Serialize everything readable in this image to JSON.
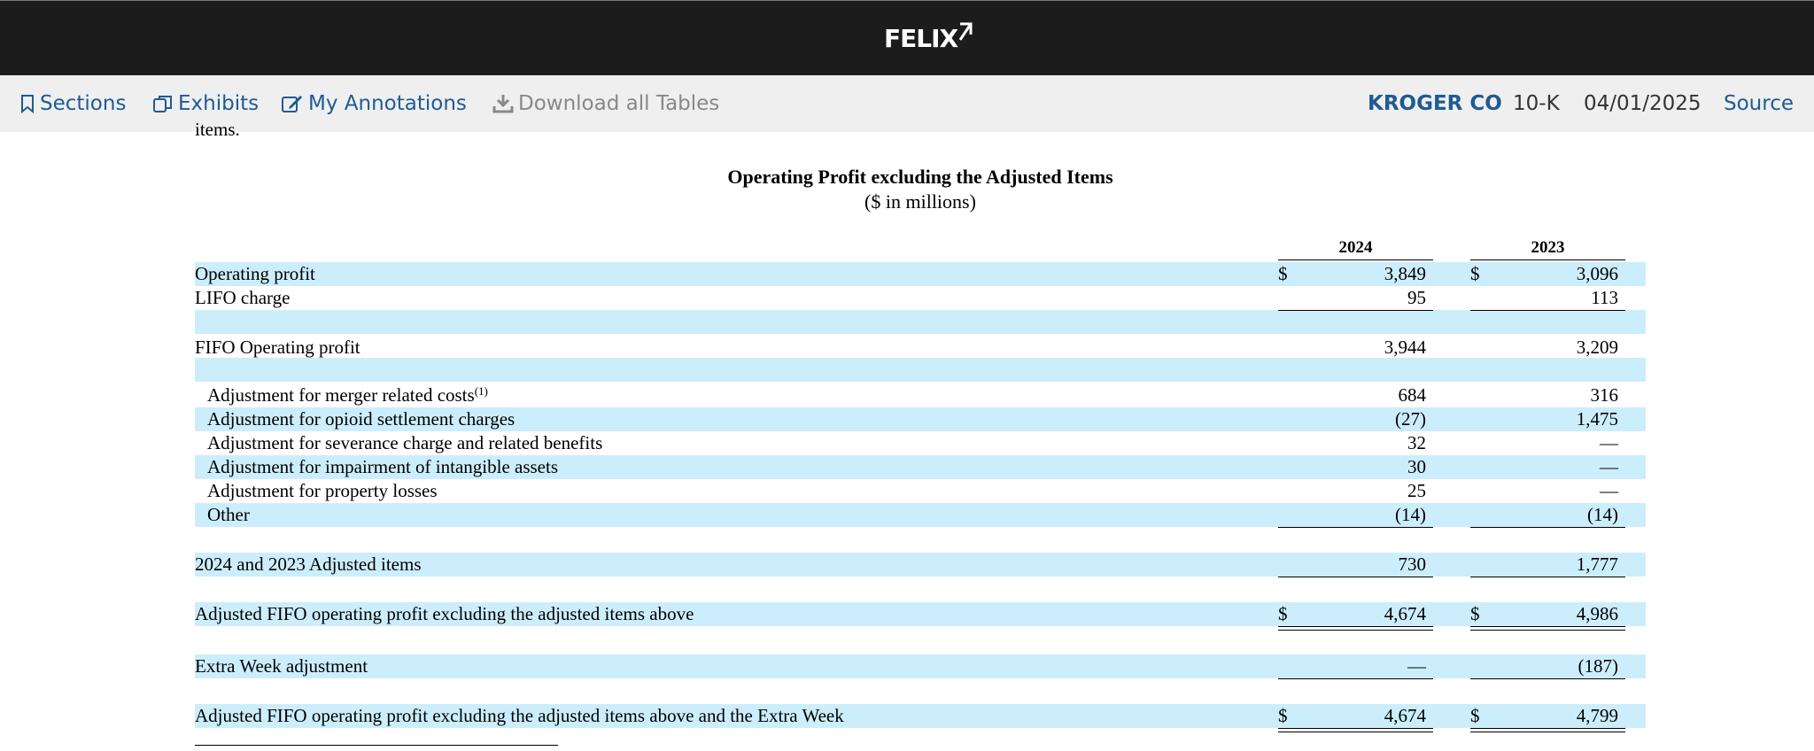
{
  "header": {
    "logo_text": "FELIX"
  },
  "toolbar": {
    "sections": "Sections",
    "exhibits": "Exhibits",
    "annotations": "My Annotations",
    "download": "Download all Tables",
    "company": "KROGER CO",
    "form": "10-K",
    "date": "04/01/2025",
    "source": "Source"
  },
  "doc": {
    "cut_text": "items.",
    "title": "Operating Profit excluding the Adjusted Items",
    "subtitle": "($ in millions)",
    "col_2024": "2024",
    "col_2023": "2023",
    "dollar": "$",
    "rows": [
      {
        "label": "Operating profit",
        "v2024": "3,849",
        "v2023": "3,096"
      },
      {
        "label": "LIFO charge",
        "v2024": "95",
        "v2023": "113"
      },
      {
        "label": "FIFO Operating profit",
        "v2024": "3,944",
        "v2023": "3,209"
      },
      {
        "label": "Adjustment for merger related costs",
        "sup": "(1)",
        "v2024": "684",
        "v2023": "316"
      },
      {
        "label": "Adjustment for opioid settlement charges",
        "v2024": "(27)",
        "v2023": "1,475"
      },
      {
        "label": "Adjustment for severance charge and related benefits",
        "v2024": "32",
        "v2023": "—"
      },
      {
        "label": "Adjustment for impairment of intangible assets",
        "v2024": "30",
        "v2023": "—"
      },
      {
        "label": "Adjustment for property losses",
        "v2024": "25",
        "v2023": "—"
      },
      {
        "label": "Other",
        "v2024": "(14)",
        "v2023": "(14)"
      },
      {
        "label": "2024 and 2023 Adjusted items",
        "v2024": "730",
        "v2023": "1,777"
      },
      {
        "label": "Adjusted FIFO operating profit excluding the adjusted items above",
        "v2024": "4,674",
        "v2023": "4,986"
      },
      {
        "label": "Extra Week adjustment",
        "v2024": "—",
        "v2023": "(187)"
      },
      {
        "label": "Adjusted FIFO operating profit excluding the adjusted items above and the Extra Week",
        "v2024": "4,674",
        "v2023": "4,799"
      }
    ]
  }
}
